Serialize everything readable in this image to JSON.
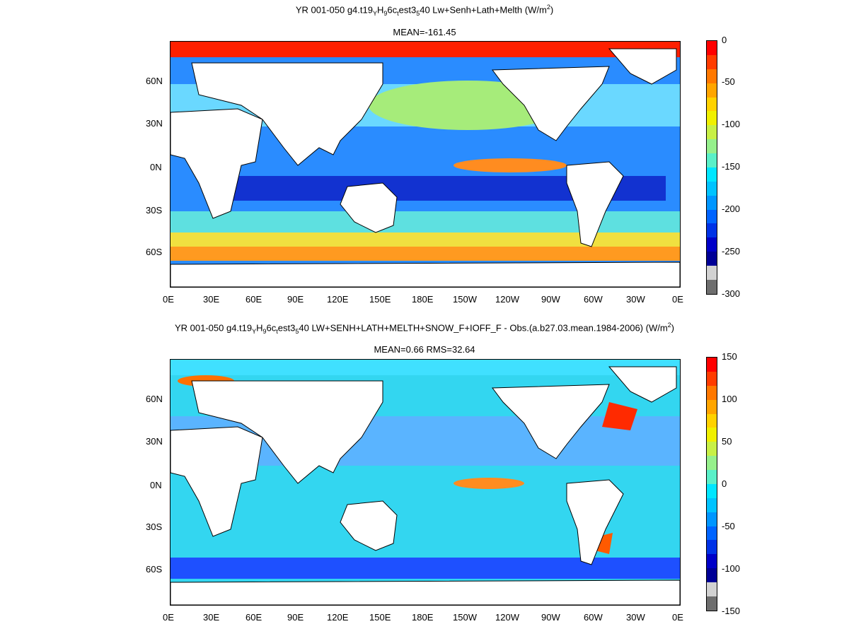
{
  "panels": [
    {
      "id": "top",
      "title_parts": {
        "a": "YR 001-050 g4.t19",
        "s1": "Y",
        "b": "H",
        "s2": "9",
        "c": "6c",
        "s3": "t",
        "d": "est3",
        "s4": "5",
        "e": "40 Lw+Senh+Lath+Melth (W/m",
        "sup": "2",
        "f": ")"
      },
      "subtitle": "MEAN=-161.45",
      "lat_labels": [
        "60N",
        "30N",
        "0N",
        "30S",
        "60S"
      ],
      "lon_labels": [
        "0E",
        "30E",
        "60E",
        "90E",
        "120E",
        "150E",
        "180E",
        "150W",
        "120W",
        "90W",
        "60W",
        "30W",
        "0E"
      ],
      "colorbar_labels": [
        "0",
        "-50",
        "-100",
        "-150",
        "-200",
        "-250",
        "-300"
      ]
    },
    {
      "id": "bottom",
      "title_parts": {
        "a": "YR 001-050 g4.t19",
        "s1": "Y",
        "b": "H",
        "s2": "9",
        "c": "6c",
        "s3": "t",
        "d": "est3",
        "s4": "5",
        "e": "40 LW+SENH+LATH+MELTH+SNOW_F+IOFF_F - Obs.(a.b27.03.mean.1984-2006) (W/m",
        "sup": "2",
        "f": ")"
      },
      "subtitle": "MEAN=0.66 RMS=32.64",
      "lat_labels": [
        "60N",
        "30N",
        "0N",
        "30S",
        "60S"
      ],
      "lon_labels": [
        "0E",
        "30E",
        "60E",
        "90E",
        "120E",
        "150E",
        "180E",
        "150W",
        "120W",
        "90W",
        "60W",
        "30W",
        "0E"
      ],
      "colorbar_labels": [
        "150",
        "100",
        "50",
        "0",
        "-50",
        "-100",
        "-150"
      ]
    }
  ],
  "colors": {
    "colorbar_top": [
      "#ff0000",
      "#ff3c00",
      "#ff7800",
      "#ffa500",
      "#ffd200",
      "#f0f000",
      "#c8f046",
      "#96f08c",
      "#5af0c8",
      "#00e6ff",
      "#00c3ff",
      "#0096ff",
      "#0064ff",
      "#0032e6",
      "#0000c8",
      "#000096",
      "#d2d2d2",
      "#6e6e6e"
    ],
    "colorbar_bottom": [
      "#ff0000",
      "#ff3c00",
      "#ff7800",
      "#ffa500",
      "#ffd200",
      "#f0f000",
      "#c8f046",
      "#96f08c",
      "#5af0c8",
      "#00e6ff",
      "#00c3ff",
      "#0096ff",
      "#0064ff",
      "#0032e6",
      "#0000c8",
      "#000096",
      "#d2d2d2",
      "#6e6e6e"
    ],
    "land": "#ffffff",
    "ocean_top_base": "#2a8cff",
    "ocean_bottom_base": "#33d6f0"
  }
}
